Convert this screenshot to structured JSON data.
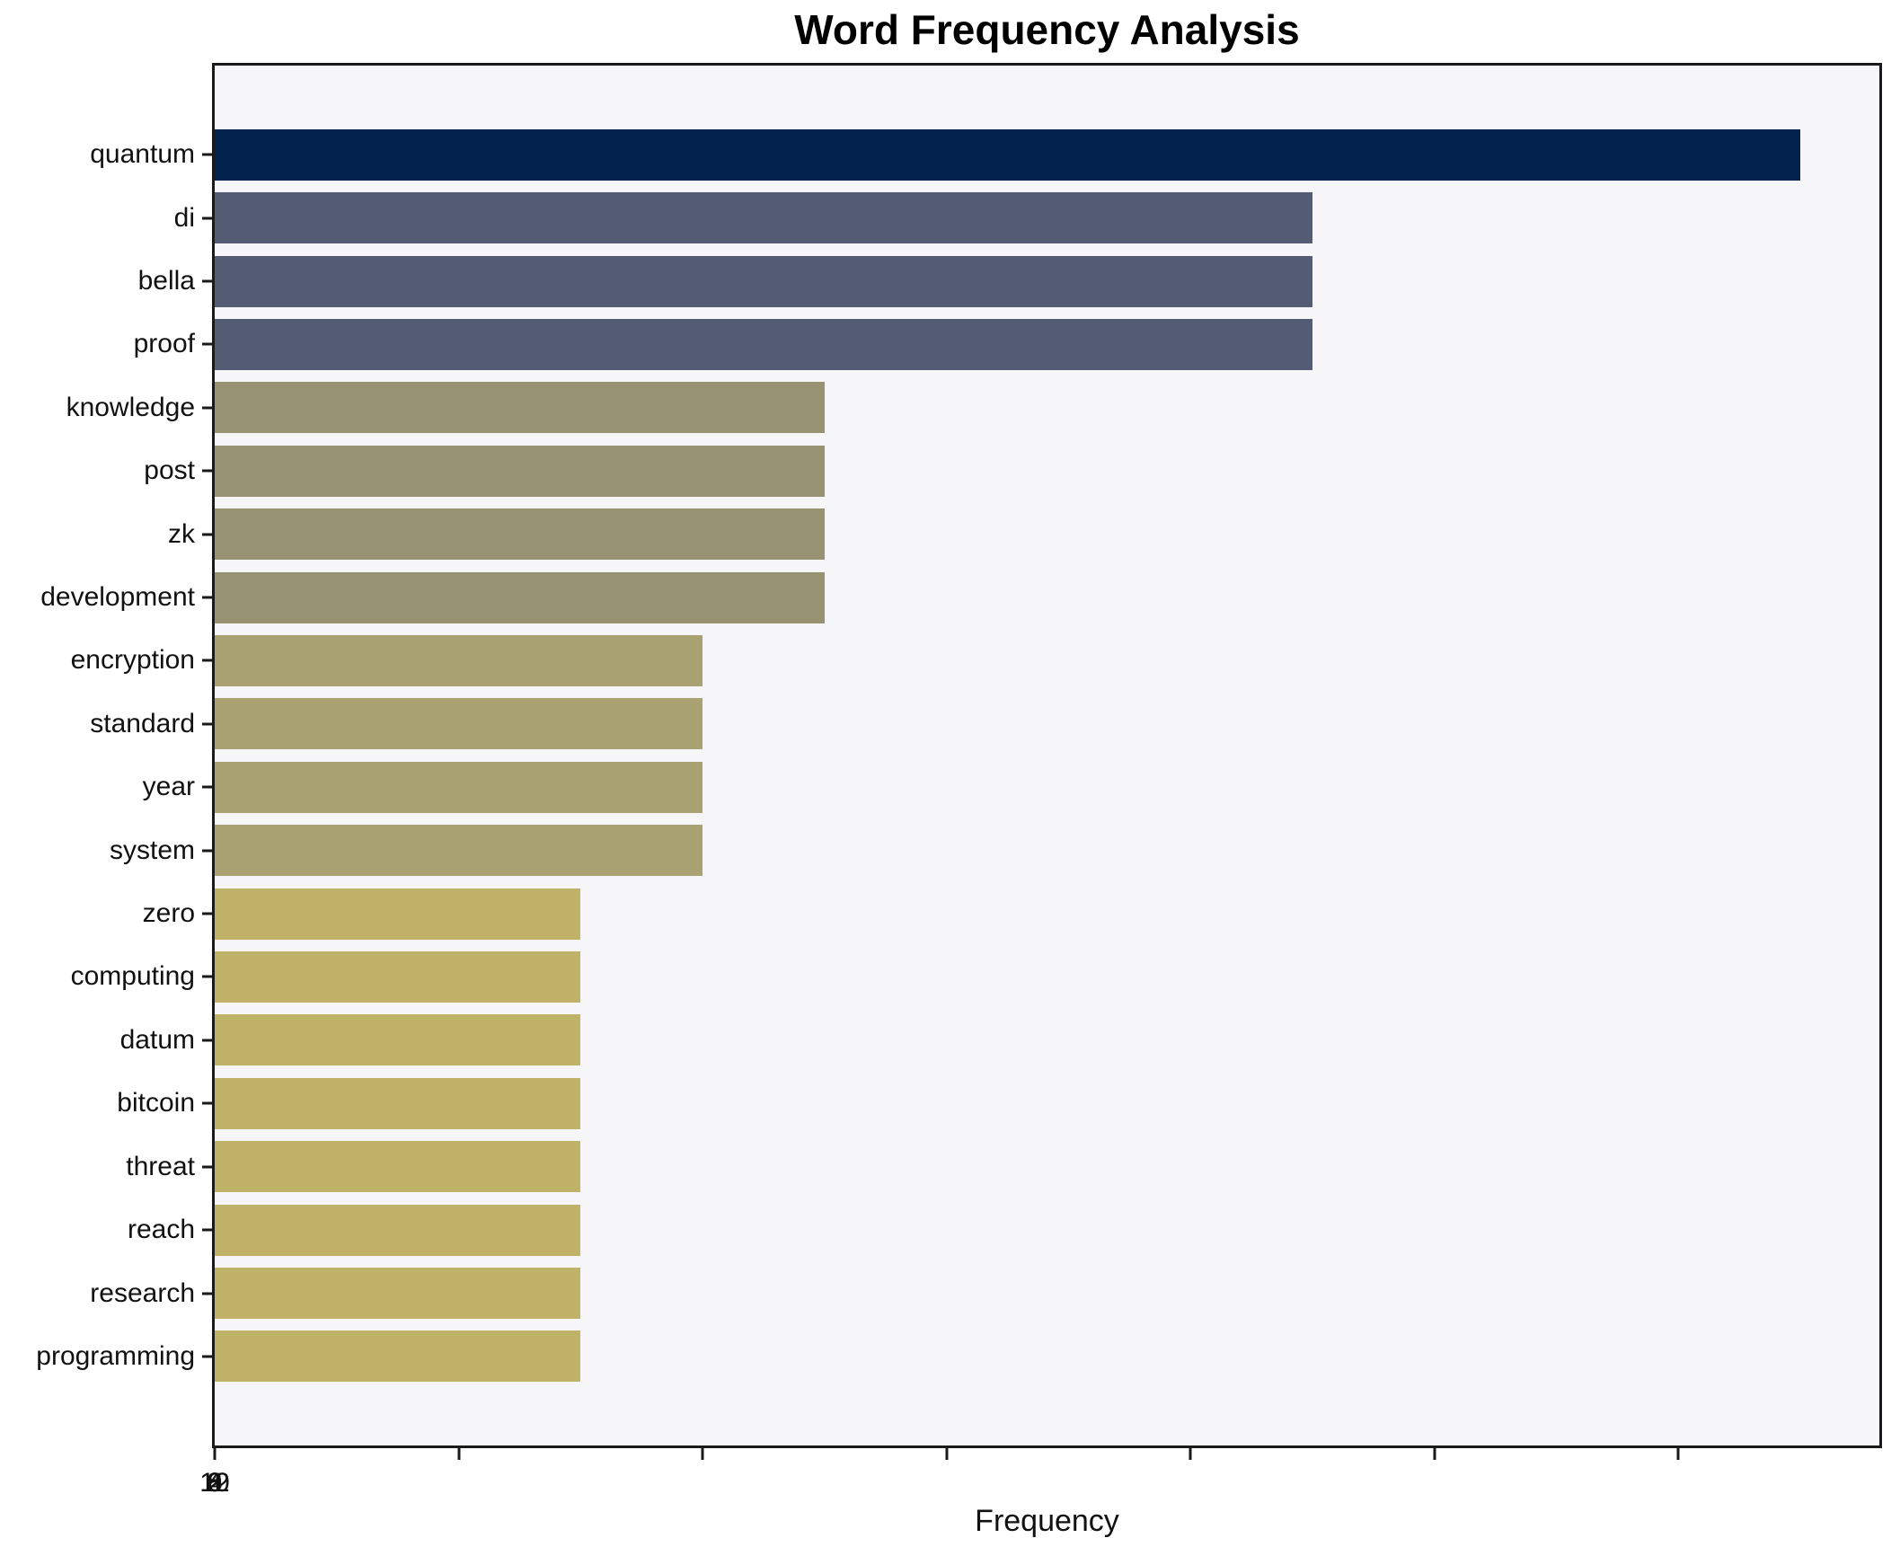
{
  "chart_data": {
    "type": "bar",
    "orientation": "horizontal",
    "title": "Word Frequency Analysis",
    "xlabel": "Frequency",
    "ylabel": "",
    "categories": [
      "quantum",
      "di",
      "bella",
      "proof",
      "knowledge",
      "post",
      "zk",
      "development",
      "encryption",
      "standard",
      "year",
      "system",
      "zero",
      "computing",
      "datum",
      "bitcoin",
      "threat",
      "reach",
      "research",
      "programming"
    ],
    "values": [
      13,
      9,
      9,
      9,
      5,
      5,
      5,
      5,
      4,
      4,
      4,
      4,
      3,
      3,
      3,
      3,
      3,
      3,
      3,
      3
    ],
    "bar_colors": [
      "#02234d",
      "#545c74",
      "#545c74",
      "#545c74",
      "#979272",
      "#979272",
      "#979272",
      "#979272",
      "#a9a172",
      "#a9a172",
      "#a9a172",
      "#a9a172",
      "#c1b269",
      "#c1b269",
      "#c1b269",
      "#c1b269",
      "#c1b269",
      "#c1b269",
      "#c1b269",
      "#c1b269"
    ],
    "xlim": [
      0,
      13.65
    ],
    "x_ticks": [
      0,
      2,
      4,
      6,
      8,
      10,
      12
    ],
    "grid": false,
    "legend": null,
    "plot_background": "#f6f6f8",
    "figure_background": "#ffffff",
    "spine_color": "#1a1a1a"
  }
}
